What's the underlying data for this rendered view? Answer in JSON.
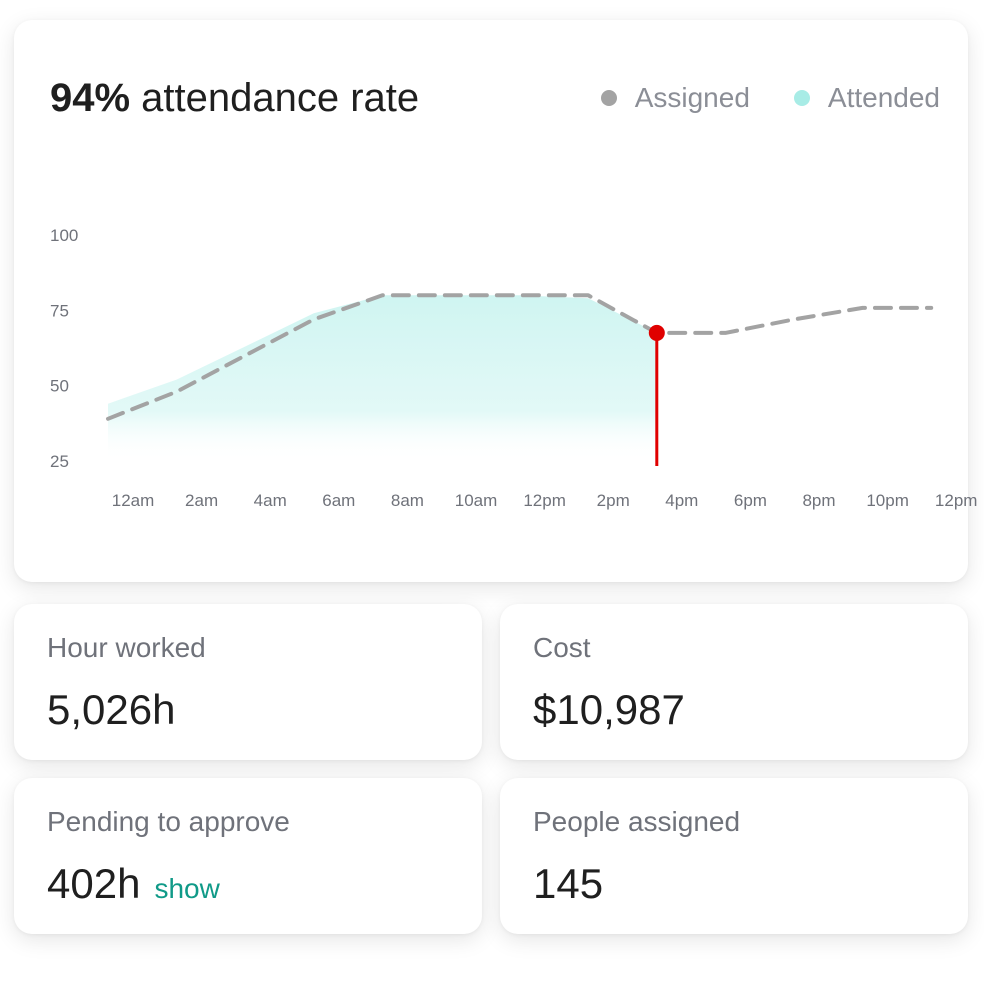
{
  "header": {
    "title_bold": "94%",
    "title_rest": " attendance rate"
  },
  "legend": [
    {
      "label": "Assigned",
      "color": "#a3a3a3"
    },
    {
      "label": "Attended",
      "color": "#a8ece6"
    }
  ],
  "chart_data": {
    "type": "line",
    "x_ticks": [
      "12am",
      "2am",
      "4am",
      "6am",
      "8am",
      "10am",
      "12pm",
      "2pm",
      "4pm",
      "6pm",
      "8pm",
      "10pm",
      "12pm"
    ],
    "y_ticks": [
      100,
      75,
      50,
      25
    ],
    "ylim": [
      25,
      100
    ],
    "series": [
      {
        "name": "Assigned",
        "style": "dashed",
        "color": "#a3a3a3",
        "x": [
          0,
          1,
          2,
          3,
          4,
          5,
          6,
          7,
          8,
          9,
          10,
          11,
          12
        ],
        "values": [
          39,
          48,
          60,
          72,
          80,
          80,
          80,
          80,
          67.5,
          67.5,
          72,
          75.8,
          75.8
        ]
      },
      {
        "name": "Attended",
        "style": "area",
        "color": "#a8ece6",
        "x": [
          0,
          1,
          2,
          3,
          4,
          5,
          6,
          7,
          8
        ],
        "values": [
          44,
          52,
          63,
          74,
          80,
          80,
          80,
          79,
          67.5
        ]
      }
    ],
    "current_marker": {
      "x": 8,
      "value": 67.5,
      "color": "#e00000"
    }
  },
  "stats": [
    {
      "label": "Hour worked",
      "value": "5,026h"
    },
    {
      "label": "Cost",
      "value": "$10,987"
    },
    {
      "label": "Pending to approve",
      "value": "402h",
      "link": "show"
    },
    {
      "label": "People assigned",
      "value": "145"
    }
  ]
}
